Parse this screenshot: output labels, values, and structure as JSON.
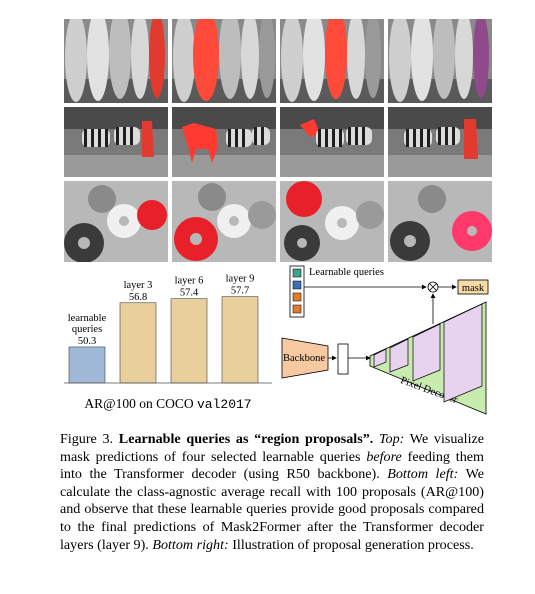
{
  "rows": [
    {
      "name": "surfboards",
      "highlight": "#e8231e"
    },
    {
      "name": "zebras",
      "highlight": "#e8231e"
    },
    {
      "name": "donuts",
      "highlight": "#e8231e"
    }
  ],
  "chart_data": {
    "type": "bar",
    "categories": [
      "learnable queries",
      "layer 3",
      "layer 6",
      "layer 9"
    ],
    "category_lines": [
      [
        "learnable",
        "queries"
      ],
      [
        "layer 3"
      ],
      [
        "layer 6"
      ],
      [
        "layer 9"
      ]
    ],
    "values": [
      50.3,
      56.8,
      57.4,
      57.7
    ],
    "value_labels": [
      "50.3",
      "56.8",
      "57.4",
      "57.7"
    ],
    "bar_colors": [
      "#9fb8d8",
      "#e9cf9c",
      "#e9cf9c",
      "#e9cf9c"
    ],
    "xlabel_plain": "AR@100 on COCO ",
    "xlabel_mono": "val2017",
    "ylim": [
      45,
      60
    ]
  },
  "diagram": {
    "queries_label": "Learnable queries",
    "query_colors": [
      "#3aa58a",
      "#3b6fb6",
      "#e07b2f",
      "#e07b2f"
    ],
    "backbone_label": "Backbone",
    "pixel_decoder_label": "Pixel Decoder",
    "mask_label": "mask",
    "multiply_symbol": "⊗",
    "colors": {
      "backbone": "#f7c9a0",
      "pixel_decoder": "#c8ecb0",
      "feature": "#e8d3ee",
      "mask": "#f6dba6"
    }
  },
  "caption": {
    "figure_label": "Figure 3.",
    "title": "Learnable queries as “region proposals”.",
    "top_label": "Top:",
    "top_text_1": "We visualize mask predictions of four selected learnable queries",
    "top_before": "before",
    "top_text_2": "feeding them into the Transformer decoder (using R50 backbone).",
    "bottom_left_label": "Bottom left:",
    "bottom_left_text": "We calculate the class-agnostic average recall with 100 proposals (AR@100) and observe that these learnable queries provide good proposals compared to the final predictions of Mask2Former after the Transformer decoder layers (layer 9).",
    "bottom_right_label": "Bottom right:",
    "bottom_right_text": "Illustration of proposal generation process."
  }
}
